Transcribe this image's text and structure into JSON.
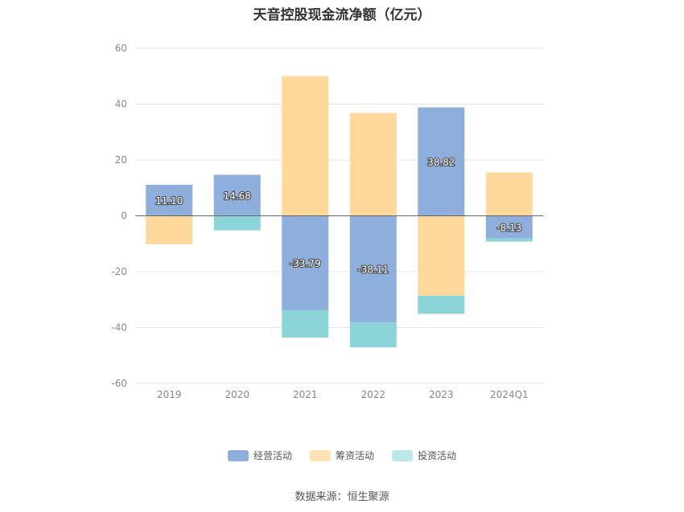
{
  "chart_data": {
    "type": "bar",
    "stacked": true,
    "title": "天音控股现金流净额（亿元）",
    "ylabel": "",
    "xlabel": "",
    "ylim": [
      -60,
      60
    ],
    "yticks": [
      60,
      40,
      20,
      0,
      -20,
      -40,
      -60
    ],
    "categories": [
      "2019",
      "2020",
      "2021",
      "2022",
      "2023",
      "2024Q1"
    ],
    "series": [
      {
        "name": "经营活动",
        "color": "#8eaedb",
        "values": [
          11.1,
          14.68,
          -33.79,
          -38.11,
          38.82,
          -8.13
        ],
        "labels": [
          "11.10",
          "14.68",
          "-33.79",
          "-38.11",
          "38.82",
          "-8.13"
        ]
      },
      {
        "name": "筹资活动",
        "color": "#ffd99c",
        "values": [
          -10.2,
          0,
          50.0,
          36.8,
          -28.6,
          15.5
        ]
      },
      {
        "name": "投资活动",
        "color": "#8bd5d9",
        "values": [
          0,
          -5.2,
          -9.8,
          -9.0,
          -6.5,
          -1.1
        ]
      }
    ],
    "legend_position": "bottom",
    "grid": true
  },
  "source": "数据来源：恒生聚源"
}
